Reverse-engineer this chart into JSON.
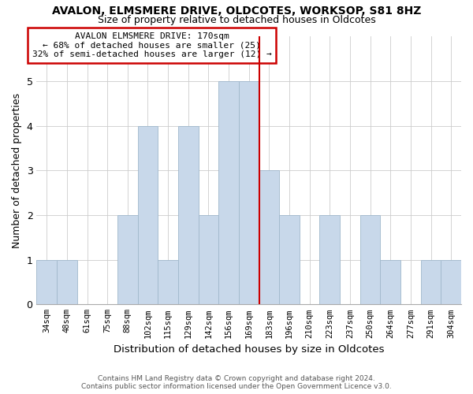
{
  "title": "AVALON, ELMSMERE DRIVE, OLDCOTES, WORKSOP, S81 8HZ",
  "subtitle": "Size of property relative to detached houses in Oldcotes",
  "xlabel": "Distribution of detached houses by size in Oldcotes",
  "ylabel": "Number of detached properties",
  "bin_labels": [
    "34sqm",
    "48sqm",
    "61sqm",
    "75sqm",
    "88sqm",
    "102sqm",
    "115sqm",
    "129sqm",
    "142sqm",
    "156sqm",
    "169sqm",
    "183sqm",
    "196sqm",
    "210sqm",
    "223sqm",
    "237sqm",
    "250sqm",
    "264sqm",
    "277sqm",
    "291sqm",
    "304sqm"
  ],
  "counts": [
    1,
    1,
    0,
    0,
    2,
    4,
    1,
    4,
    2,
    5,
    5,
    3,
    2,
    0,
    2,
    0,
    2,
    1,
    0,
    1,
    1
  ],
  "highlight_bin_index": 10,
  "highlight_color": "#cc0000",
  "bar_color": "#c8d8ea",
  "bar_edge_color": "#a0b8cc",
  "annotation_title": "AVALON ELMSMERE DRIVE: 170sqm",
  "annotation_line1": "← 68% of detached houses are smaller (25)",
  "annotation_line2": "32% of semi-detached houses are larger (12) →",
  "footer_line1": "Contains HM Land Registry data © Crown copyright and database right 2024.",
  "footer_line2": "Contains public sector information licensed under the Open Government Licence v3.0.",
  "ylim": [
    0,
    6
  ],
  "yticks": [
    0,
    1,
    2,
    3,
    4,
    5,
    6
  ],
  "background_color": "#ffffff",
  "grid_color": "#cccccc"
}
